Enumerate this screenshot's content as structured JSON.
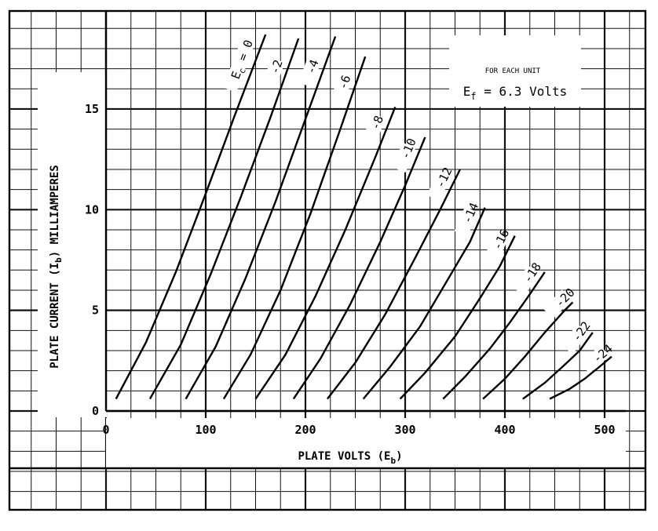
{
  "chart_data": {
    "type": "line",
    "xlabel": "PLATE VOLTS (E",
    "xlabel_sub": "b",
    "ylabel": "PLATE CURRENT (I",
    "ylabel_sub": "b",
    "ylabel_tail": ") MILLIAMPERES",
    "xlim": [
      0,
      500
    ],
    "ylim": [
      0,
      15
    ],
    "x_ticks": [
      "0",
      "100",
      "200",
      "300",
      "400",
      "500"
    ],
    "y_ticks": [
      "0",
      "5",
      "10",
      "15"
    ],
    "grid": true,
    "note": {
      "line1": "FOR EACH UNIT",
      "line2_prefix": "E",
      "line2_sub": "f",
      "line2_suffix": " = 6.3 Volts"
    },
    "ec_label_prefix": "E",
    "ec_label_sub": "c",
    "series": [
      {
        "name": "0",
        "label": "= 0",
        "x": [
          10,
          40,
          70,
          100,
          130,
          160
        ],
        "y": [
          0.6,
          3.4,
          6.9,
          10.8,
          14.8,
          18.7
        ]
      },
      {
        "name": "-2",
        "label": "-2",
        "x": [
          44,
          75,
          105,
          135,
          165,
          193
        ],
        "y": [
          0.6,
          3.3,
          6.8,
          10.6,
          14.6,
          18.5
        ]
      },
      {
        "name": "-4",
        "label": "-4",
        "x": [
          80,
          110,
          140,
          170,
          200,
          230
        ],
        "y": [
          0.6,
          3.2,
          6.6,
          10.4,
          14.5,
          18.6
        ]
      },
      {
        "name": "-6",
        "label": "-6",
        "x": [
          118,
          145,
          175,
          205,
          235,
          260
        ],
        "y": [
          0.6,
          2.8,
          6.0,
          9.8,
          14.0,
          17.6
        ]
      },
      {
        "name": "-8",
        "label": "-8",
        "x": [
          150,
          180,
          210,
          240,
          270,
          290
        ],
        "y": [
          0.6,
          2.8,
          5.7,
          9.0,
          12.6,
          15.1
        ]
      },
      {
        "name": "-10",
        "label": "-10",
        "x": [
          188,
          215,
          245,
          275,
          300,
          320
        ],
        "y": [
          0.6,
          2.6,
          5.3,
          8.4,
          11.2,
          13.6
        ]
      },
      {
        "name": "-12",
        "label": "-12",
        "x": [
          222,
          250,
          280,
          310,
          335,
          355
        ],
        "y": [
          0.6,
          2.4,
          4.8,
          7.6,
          10.0,
          12.0
        ]
      },
      {
        "name": "-14",
        "label": "-14",
        "x": [
          258,
          285,
          315,
          340,
          365,
          380
        ],
        "y": [
          0.6,
          2.2,
          4.2,
          6.3,
          8.4,
          10.1
        ]
      },
      {
        "name": "-16",
        "label": "-16",
        "x": [
          295,
          320,
          350,
          375,
          395,
          410
        ],
        "y": [
          0.6,
          1.9,
          3.7,
          5.6,
          7.2,
          8.7
        ]
      },
      {
        "name": "-18",
        "label": "-18",
        "x": [
          338,
          360,
          385,
          405,
          425,
          440
        ],
        "y": [
          0.6,
          1.7,
          3.1,
          4.4,
          5.8,
          6.9
        ]
      },
      {
        "name": "-20",
        "label": "-20",
        "x": [
          378,
          400,
          420,
          440,
          460,
          468
        ],
        "y": [
          0.6,
          1.6,
          2.7,
          3.9,
          5.0,
          5.4
        ]
      },
      {
        "name": "-22",
        "label": "-22",
        "x": [
          418,
          440,
          460,
          475,
          488
        ],
        "y": [
          0.6,
          1.4,
          2.3,
          3.0,
          3.9
        ]
      },
      {
        "name": "-24",
        "label": "-24",
        "x": [
          445,
          465,
          480,
          495,
          507
        ],
        "y": [
          0.6,
          1.1,
          1.6,
          2.2,
          2.7
        ]
      }
    ]
  }
}
